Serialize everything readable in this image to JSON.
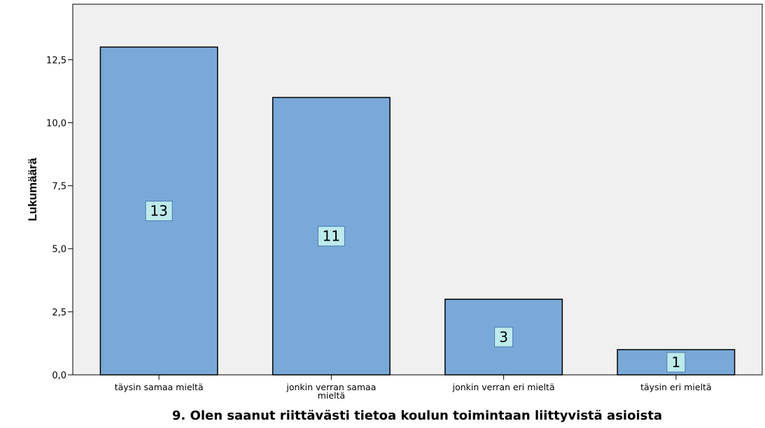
{
  "chart_data": {
    "type": "bar",
    "categories": [
      "täysin samaa mieltä",
      "jonkin verran samaa mieltä",
      "jonkin verran eri mieltä",
      "täysin eri mieltä"
    ],
    "values": [
      13,
      11,
      3,
      1
    ],
    "data_labels": [
      "13",
      "11",
      "3",
      "1"
    ],
    "title": "",
    "xlabel": "9. Olen saanut riittävästi tietoa koulun toimintaan liittyvistä asioista",
    "ylabel": "Lukumäärä",
    "ylim": [
      0,
      14.7
    ],
    "yticks": [
      0,
      2.5,
      5,
      7.5,
      10,
      12.5
    ],
    "ytick_labels": [
      "0,0",
      "2,5",
      "5,0",
      "7,5",
      "10,0",
      "12,5"
    ],
    "grid": false,
    "legend": "none",
    "colors": {
      "plot_background": "#f0f0f0",
      "bar_fill": "#79a9d8",
      "bar_stroke": "#000000",
      "label_fill": "#bdeaeb",
      "label_stroke": "#4a78b0"
    }
  }
}
